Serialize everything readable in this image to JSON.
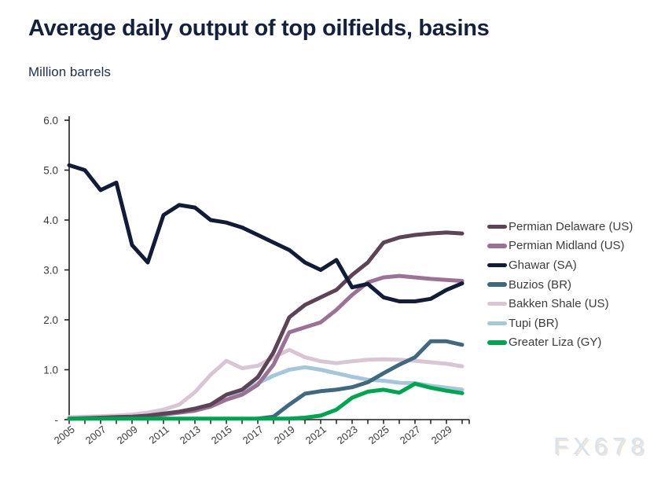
{
  "header": {
    "title": "Average daily output of top oilfields, basins",
    "subtitle": "Million barrels"
  },
  "watermark": "FX678",
  "chart_data": {
    "type": "line",
    "title": "Average daily output of top oilfields, basins",
    "ylabel": "Million barrels",
    "grid": false,
    "legend_position": "right",
    "axis_color": "#1f1f1f",
    "tick_text_color": "#3a3a3a",
    "x_label_rotation": -38,
    "x": [
      2005,
      2006,
      2007,
      2008,
      2009,
      2010,
      2011,
      2012,
      2013,
      2014,
      2015,
      2016,
      2017,
      2018,
      2019,
      2020,
      2021,
      2022,
      2023,
      2024,
      2025,
      2026,
      2027,
      2028,
      2029,
      2030
    ],
    "xtick_labels": [
      "2005",
      "2007",
      "2009",
      "2011",
      "2013",
      "2015",
      "2017",
      "2019",
      "2021",
      "2023",
      "2025",
      "2027",
      "2029"
    ],
    "ylim": [
      0,
      6
    ],
    "ytick_values": [
      0,
      1,
      2,
      3,
      4,
      5,
      6
    ],
    "ytick_labels": [
      "-",
      "1.0",
      "2.0",
      "3.0",
      "4.0",
      "5.0",
      "6.0"
    ],
    "series": [
      {
        "name": "Permian Delaware (US)",
        "color": "#5c4356",
        "values": [
          0.02,
          0.03,
          0.04,
          0.05,
          0.06,
          0.08,
          0.12,
          0.16,
          0.22,
          0.3,
          0.5,
          0.6,
          0.85,
          1.35,
          2.05,
          2.3,
          2.45,
          2.6,
          2.9,
          3.15,
          3.55,
          3.65,
          3.7,
          3.73,
          3.75,
          3.73
        ]
      },
      {
        "name": "Permian Midland (US)",
        "color": "#9b7195",
        "values": [
          0.02,
          0.02,
          0.03,
          0.04,
          0.05,
          0.07,
          0.1,
          0.14,
          0.18,
          0.26,
          0.4,
          0.5,
          0.7,
          1.1,
          1.75,
          1.85,
          1.95,
          2.2,
          2.5,
          2.75,
          2.85,
          2.88,
          2.85,
          2.82,
          2.8,
          2.78
        ]
      },
      {
        "name": "Ghawar (SA)",
        "color": "#121c36",
        "values": [
          5.1,
          5.0,
          4.6,
          4.75,
          3.5,
          3.15,
          4.1,
          4.3,
          4.25,
          4.0,
          3.95,
          3.85,
          3.7,
          3.55,
          3.4,
          3.15,
          3.0,
          3.2,
          2.65,
          2.72,
          2.45,
          2.37,
          2.37,
          2.42,
          2.6,
          2.73
        ]
      },
      {
        "name": "Buzios (BR)",
        "color": "#41687f",
        "values": [
          null,
          null,
          null,
          null,
          null,
          null,
          null,
          null,
          null,
          null,
          null,
          null,
          0.02,
          0.06,
          0.3,
          0.52,
          0.57,
          0.6,
          0.65,
          0.75,
          0.93,
          1.1,
          1.25,
          1.57,
          1.57,
          1.5
        ]
      },
      {
        "name": "Bakken Shale (US)",
        "color": "#d9c6d5",
        "values": [
          0.05,
          0.06,
          0.07,
          0.08,
          0.1,
          0.14,
          0.2,
          0.3,
          0.55,
          0.9,
          1.18,
          1.03,
          1.08,
          1.25,
          1.4,
          1.25,
          1.17,
          1.13,
          1.17,
          1.2,
          1.21,
          1.2,
          1.18,
          1.15,
          1.12,
          1.07
        ]
      },
      {
        "name": "Tupi (BR)",
        "color": "#a6c6db",
        "values": [
          null,
          null,
          null,
          0.02,
          0.03,
          0.05,
          0.1,
          0.15,
          0.2,
          0.28,
          0.4,
          0.55,
          0.73,
          0.88,
          1.0,
          1.05,
          1.0,
          0.93,
          0.86,
          0.8,
          0.78,
          0.74,
          0.73,
          0.68,
          0.64,
          0.6
        ]
      },
      {
        "name": "Greater Liza (GY)",
        "color": "#00a350",
        "values": [
          0.02,
          0.02,
          0.02,
          0.02,
          0.02,
          0.02,
          0.02,
          0.02,
          0.02,
          0.02,
          0.02,
          0.02,
          0.02,
          0.02,
          0.02,
          0.04,
          0.08,
          0.2,
          0.44,
          0.56,
          0.6,
          0.54,
          0.72,
          0.64,
          0.58,
          0.53
        ]
      }
    ],
    "draw_order": [
      "Bakken Shale (US)",
      "Tupi (BR)",
      "Permian Midland (US)",
      "Permian Delaware (US)",
      "Ghawar (SA)",
      "Buzios (BR)",
      "Greater Liza (GY)"
    ]
  }
}
